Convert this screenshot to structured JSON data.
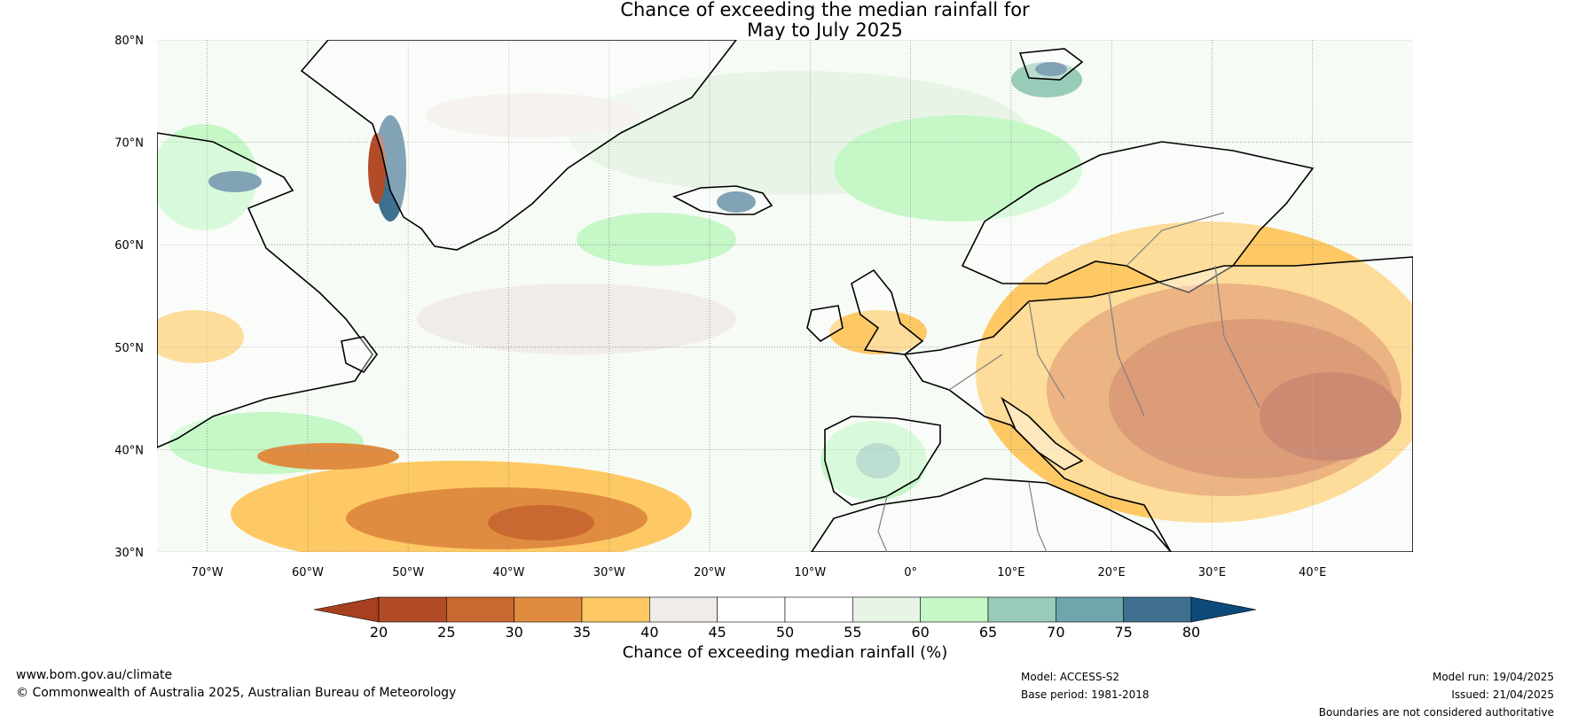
{
  "title": {
    "line1": "Chance of exceeding the median rainfall for",
    "line2": "May to July 2025"
  },
  "map": {
    "lat_range": [
      30,
      80
    ],
    "lon_range": [
      -75,
      50
    ],
    "lat_labels": [
      "80°N",
      "70°N",
      "60°N",
      "50°N",
      "40°N",
      "30°N"
    ],
    "lat_values": [
      80,
      70,
      60,
      50,
      40,
      30
    ],
    "lon_labels": [
      "70°W",
      "60°W",
      "50°W",
      "40°W",
      "30°W",
      "20°W",
      "10°W",
      "0°",
      "10°E",
      "20°E",
      "30°E",
      "40°E"
    ],
    "lon_values": [
      -70,
      -60,
      -50,
      -40,
      -30,
      -20,
      -10,
      0,
      10,
      20,
      30,
      40
    ],
    "grid": true,
    "land_color": "#ffffff",
    "coast_color": "#000000",
    "border_color": "#808080"
  },
  "colorbar": {
    "title": "Chance of exceeding median rainfall (%)",
    "ticks": [
      "20",
      "25",
      "30",
      "35",
      "40",
      "45",
      "50",
      "55",
      "60",
      "65",
      "70",
      "75",
      "80"
    ],
    "colors": [
      "#a6401f",
      "#b24c28",
      "#c96830",
      "#e08c40",
      "#fec964",
      "#f0ece8",
      "#ffffff",
      "#ffffff",
      "#e8f5e6",
      "#c5f7c7",
      "#98ccb8",
      "#6ea6ab",
      "#3f7090",
      "#0d4a7a"
    ],
    "extend": "both"
  },
  "footer": {
    "url": "www.bom.gov.au/climate",
    "copyright": "© Commonwealth of Australia 2025, Australian Bureau of Meteorology",
    "model": "Model: ACCESS-S2",
    "base_period": "Base period: 1981-2018",
    "model_run": "Model run: 19/04/2025",
    "issued": "Issued: 21/04/2025",
    "disclaimer": "Boundaries are not considered authoritative"
  }
}
